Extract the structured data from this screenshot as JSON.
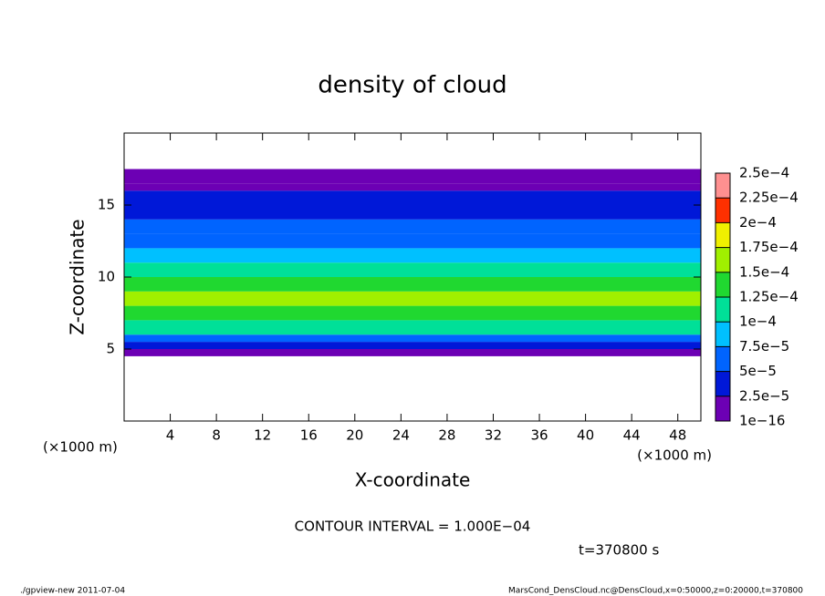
{
  "chart_data": {
    "type": "heatmap",
    "title": "density of cloud",
    "xlabel": "X-coordinate",
    "ylabel": "Z-coordinate",
    "x_unit": "(×1000 m)",
    "y_unit": "(×1000 m)",
    "xlim": [
      0,
      50
    ],
    "ylim": [
      0,
      20
    ],
    "xticks": [
      4,
      8,
      12,
      16,
      20,
      24,
      28,
      32,
      36,
      40,
      44,
      48
    ],
    "yticks": [
      5,
      10,
      15
    ],
    "z_edges": [
      4.5,
      5,
      5.5,
      6,
      7,
      8,
      9,
      10,
      11,
      12,
      13,
      14,
      15,
      16,
      16.5,
      17.5
    ],
    "values": [
      1e-05,
      3e-05,
      6e-05,
      0.00011,
      0.00014,
      0.00015,
      0.00013,
      0.0001,
      8e-05,
      6.5e-05,
      5.5e-05,
      4.5e-05,
      3.5e-05,
      2e-05,
      1e-05
    ],
    "levels": [
      {
        "value": 1e-16,
        "label": "1e−16"
      },
      {
        "value": 2.5e-05,
        "label": "2.5e−5"
      },
      {
        "value": 5e-05,
        "label": "5e−5"
      },
      {
        "value": 7.5e-05,
        "label": "7.5e−5"
      },
      {
        "value": 0.0001,
        "label": "1e−4"
      },
      {
        "value": 0.000125,
        "label": "1.25e−4"
      },
      {
        "value": 0.00015,
        "label": "1.5e−4"
      },
      {
        "value": 0.000175,
        "label": "1.75e−4"
      },
      {
        "value": 0.0002,
        "label": "2e−4"
      },
      {
        "value": 0.000225,
        "label": "2.25e−4"
      },
      {
        "value": 0.00025,
        "label": "2.5e−4"
      }
    ],
    "colors": [
      "#6c00b4",
      "#0018d8",
      "#0064ff",
      "#00c0ff",
      "#00e098",
      "#20d830",
      "#a0f000",
      "#f0f000",
      "#ff3000",
      "#ff9090"
    ],
    "contour_note": "CONTOUR INTERVAL = 1.000E−04",
    "time": "t=370800 s",
    "footer_left": "./gpview-new  2011-07-04",
    "footer_right": "MarsCond_DensCloud.nc@DensCloud,x=0:50000,z=0:20000,t=370800"
  }
}
